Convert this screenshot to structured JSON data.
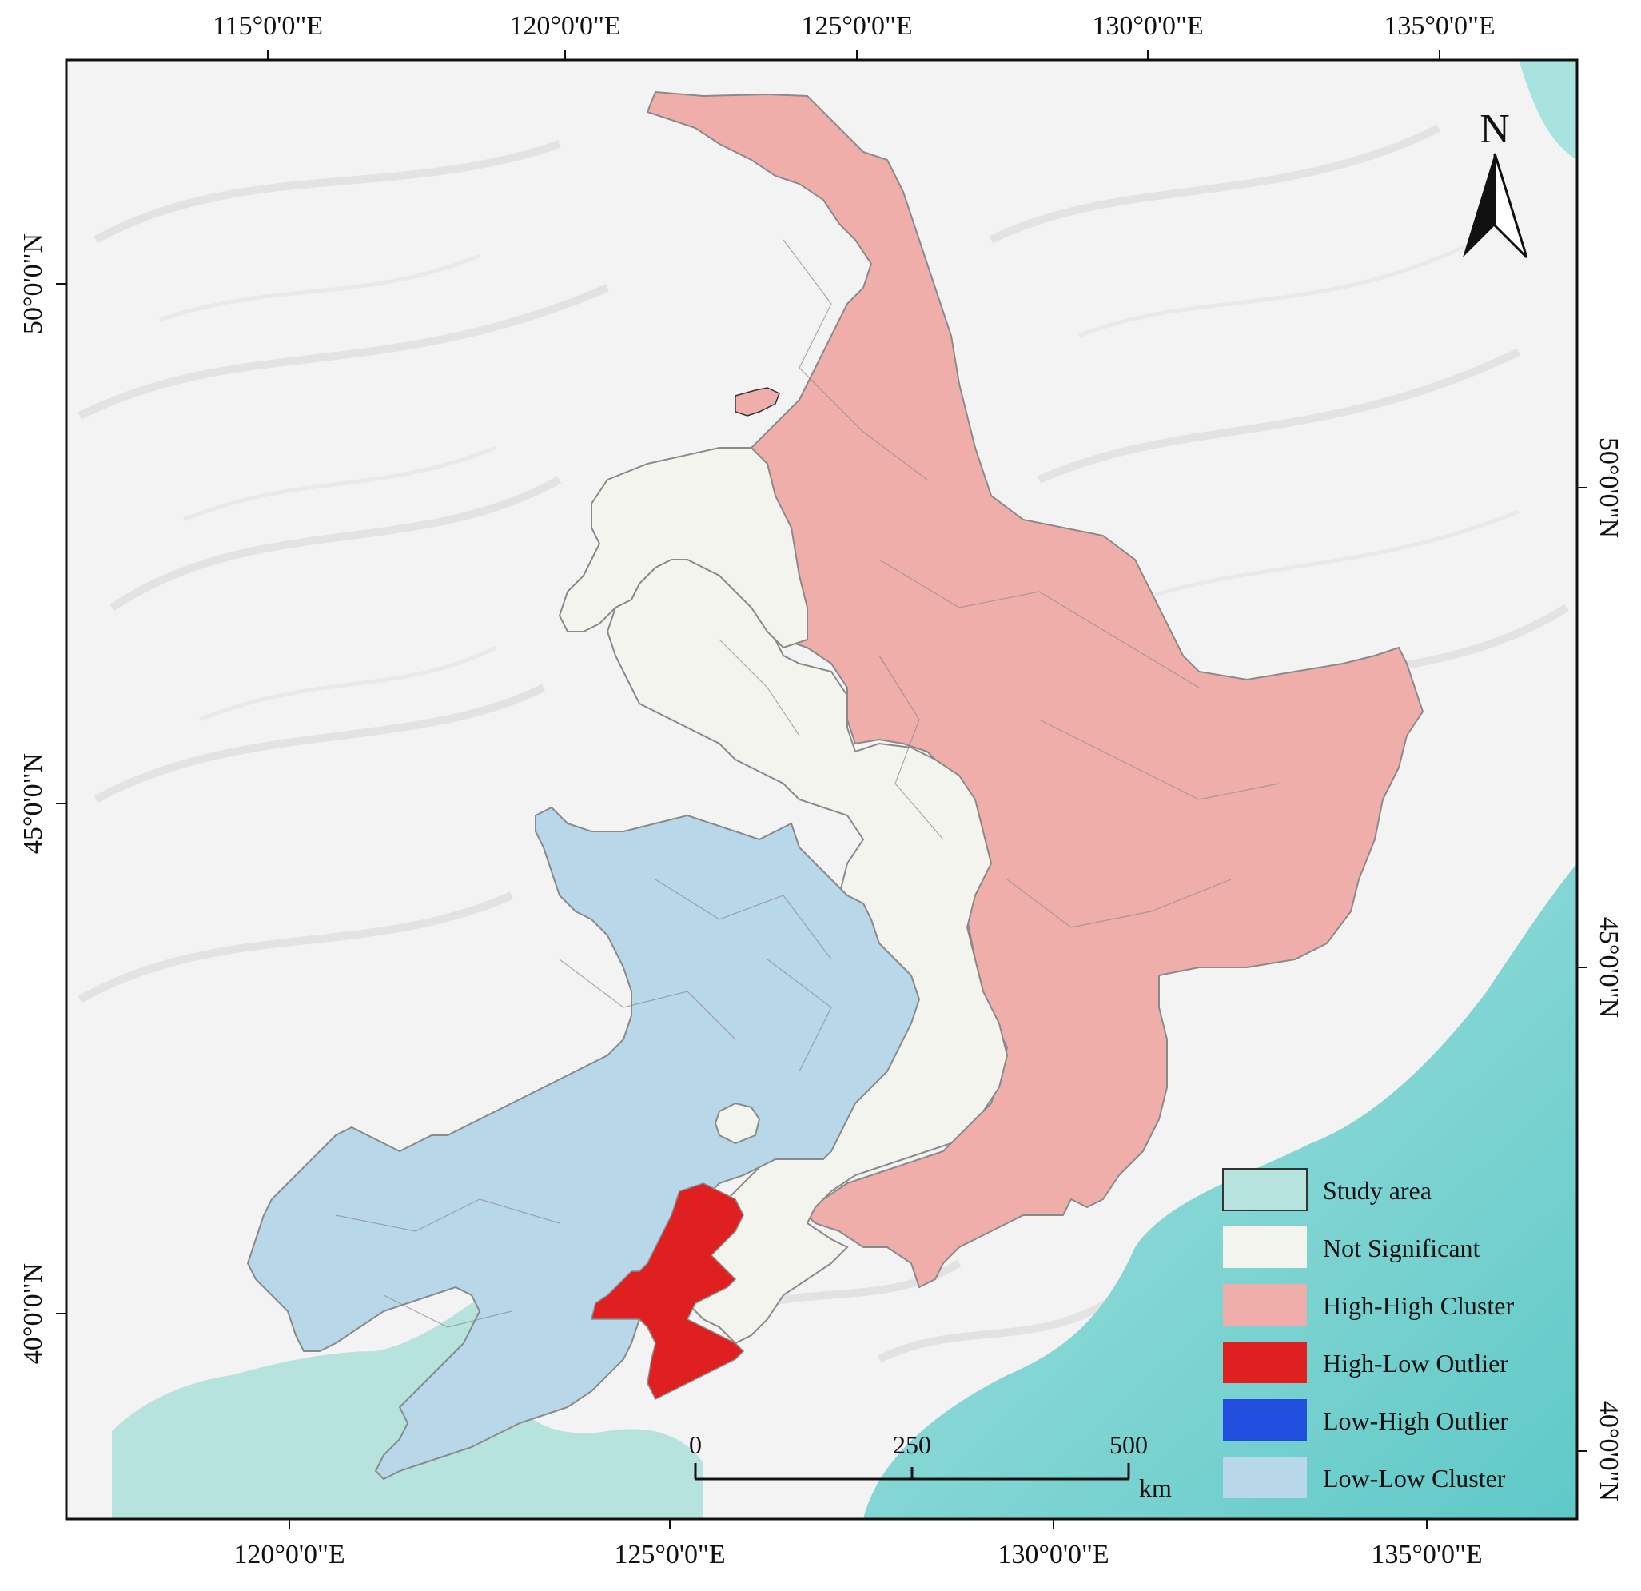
{
  "map": {
    "top_axis_labels": [
      "115°0'0\"E",
      "120°0'0\"E",
      "125°0'0\"E",
      "130°0'0\"E",
      "135°0'0\"E"
    ],
    "bottom_axis_labels": [
      "120°0'0\"E",
      "125°0'0\"E",
      "130°0'0\"E",
      "135°0'0\"E"
    ],
    "left_axis_labels": [
      "50°0'0\"N",
      "45°0'0\"N",
      "40°0'0\"N"
    ],
    "right_axis_labels": [
      "50°0'0\"N",
      "45°0'0\"N",
      "40°0'0\"N"
    ],
    "north_arrow": {
      "label": "N",
      "icon": "north-arrow-icon"
    },
    "scale_bar": {
      "ticks": [
        "0",
        "250",
        "500"
      ],
      "unit": "km"
    },
    "legend": [
      {
        "key": "study_area",
        "label": "Study area",
        "color": "#b7e3df"
      },
      {
        "key": "not_significant",
        "label": "Not Significant",
        "color": "#f4f4ef"
      },
      {
        "key": "high_high",
        "label": "High-High Cluster",
        "color": "#f0aeaa"
      },
      {
        "key": "high_low",
        "label": "High-Low Outlier",
        "color": "#e02020"
      },
      {
        "key": "low_high",
        "label": "Low-High Outlier",
        "color": "#1f4fdc"
      },
      {
        "key": "low_low",
        "label": "Low-Low Cluster",
        "color": "#b8d7e8"
      }
    ],
    "colors": {
      "sea": "#7fd3d1",
      "terrain": "#f2f2f2",
      "region_border": "#8a8a8a"
    }
  }
}
